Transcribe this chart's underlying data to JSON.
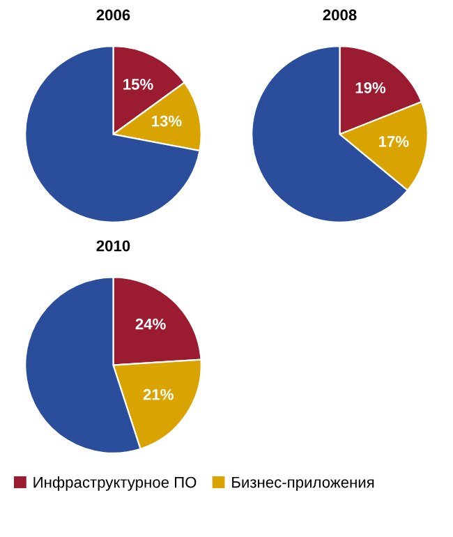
{
  "chart_data": [
    {
      "type": "pie",
      "title": "2006",
      "categories": [
        "Инфраструктурное ПО",
        "Бизнес-приложения",
        null
      ],
      "values": [
        15,
        13,
        72
      ],
      "colors": [
        "#9b1b30",
        "#d9a400",
        "#2a4e9c"
      ],
      "value_labels": [
        "15%",
        "13%",
        null
      ],
      "legend": "bottom"
    },
    {
      "type": "pie",
      "title": "2008",
      "categories": [
        null,
        null,
        null
      ],
      "values": [
        19,
        17,
        64
      ],
      "colors": [
        "#9b1b30",
        "#d9a400",
        "#2a4e9c"
      ],
      "value_labels": [
        "19%",
        "17%",
        null
      ]
    },
    {
      "type": "pie",
      "title": "2010",
      "categories": [
        null,
        null,
        null
      ],
      "values": [
        24,
        21,
        55
      ],
      "colors": [
        "#9b1b30",
        "#d9a400",
        "#2a4e9c"
      ],
      "value_labels": [
        "24%",
        "21%",
        null
      ]
    }
  ]
}
